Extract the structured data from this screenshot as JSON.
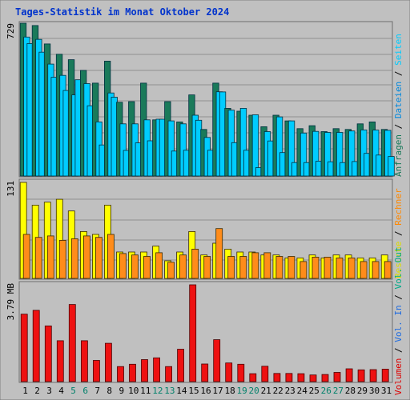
{
  "chart_data": {
    "type": "bar",
    "title": "Tages-Statistik im Monat Oktober 2024",
    "categories": [
      "1",
      "2",
      "3",
      "4",
      "5",
      "6",
      "7",
      "8",
      "9",
      "10",
      "11",
      "12",
      "13",
      "14",
      "15",
      "16",
      "17",
      "18",
      "19",
      "20",
      "21",
      "22",
      "23",
      "24",
      "25",
      "26",
      "27",
      "28",
      "29",
      "30",
      "31"
    ],
    "weekend_days": [
      "5",
      "6",
      "12",
      "13",
      "19",
      "20",
      "26",
      "27"
    ],
    "panels": [
      {
        "key": "requests",
        "max_label": "729",
        "ylim": [
          0,
          729
        ],
        "grid": true,
        "series": [
          {
            "name": "Anfragen",
            "color": "#1a7a5a",
            "values": [
              729,
              718,
              630,
              581,
              555,
              504,
              443,
              548,
              352,
              355,
              443,
              268,
              355,
              258,
              387,
              222,
              443,
              323,
              309,
              290,
              235,
              290,
              263,
              226,
              240,
              212,
              226,
              222,
              249,
              258,
              222
            ]
          },
          {
            "name": "Dateien",
            "color": "#00ccff",
            "values": [
              663,
              652,
              534,
              480,
              387,
              441,
              258,
              396,
              249,
              249,
              268,
              271,
              263,
              249,
              290,
              184,
              402,
              314,
              323,
              292,
              212,
              282,
              263,
              205,
              213,
              208,
              208,
              215,
              220,
              219,
              218
            ]
          },
          {
            "name": "Seiten",
            "color": "#00ccff",
            "values": [
              632,
              591,
              471,
              408,
              459,
              335,
              148,
              376,
              122,
              158,
              168,
              271,
              119,
              123,
              266,
              123,
              401,
              159,
              123,
              40,
              167,
              112,
              64,
              64,
              71,
              68,
              64,
              69,
              108,
              100,
              93
            ]
          }
        ]
      },
      {
        "key": "visits",
        "max_label": "131",
        "ylim": [
          0,
          131
        ],
        "grid": true,
        "series": [
          {
            "name": "Besuche",
            "color": "#ffff00",
            "values": [
              131,
              100,
              104,
              108,
              92,
              64,
              60,
              100,
              36,
              36,
              36,
              44,
              24,
              36,
              64,
              32,
              48,
              40,
              36,
              36,
              32,
              32,
              28,
              28,
              32,
              28,
              32,
              32,
              28,
              28,
              32
            ]
          },
          {
            "name": "Rechner",
            "color": "#ff8c1a",
            "values": [
              60,
              56,
              58,
              52,
              54,
              58,
              56,
              60,
              34,
              32,
              30,
              35,
              22,
              32,
              40,
              30,
              68,
              30,
              30,
              35,
              35,
              30,
              30,
              23,
              29,
              29,
              28,
              28,
              23,
              23,
              23
            ]
          }
        ]
      },
      {
        "key": "traffic",
        "max_label": "3.79 MB",
        "ylim": [
          0,
          3.79
        ],
        "grid": false,
        "series": [
          {
            "name": "Volumen",
            "color": "#ee1111",
            "values": [
              2.64,
              2.79,
              2.18,
              1.6,
              3.02,
              1.6,
              0.83,
              1.5,
              0.59,
              0.68,
              0.86,
              0.93,
              0.59,
              1.27,
              3.79,
              0.69,
              1.64,
              0.73,
              0.68,
              0.31,
              0.6,
              0.32,
              0.32,
              0.31,
              0.26,
              0.28,
              0.36,
              0.5,
              0.46,
              0.47,
              0.49
            ]
          }
        ]
      }
    ],
    "legend": {
      "placement": "right-vertical",
      "groups": [
        [
          {
            "text": "Anfragen",
            "color": "#1a7a5a"
          },
          {
            "text": "Dateien",
            "color": "#0088dd"
          },
          {
            "text": "Seiten",
            "color": "#00ccff"
          }
        ],
        [
          {
            "text": "Besuche",
            "color": "#dddd00"
          },
          {
            "text": "Rechner",
            "color": "#ff8800"
          }
        ],
        [
          {
            "text": "Volumen",
            "color": "#dd0000"
          },
          {
            "text": "Vol. In",
            "color": "#1e6be0"
          },
          {
            "text": "Vol. Out",
            "color": "#00aa88"
          }
        ]
      ],
      "separator": " / "
    },
    "colors": {
      "background": "#c0c0c0",
      "plot": "#c0c0c0",
      "title": "#0033cc",
      "grid": "#909090",
      "axis_text": "#000000",
      "weekend_text": "#00806a"
    }
  }
}
